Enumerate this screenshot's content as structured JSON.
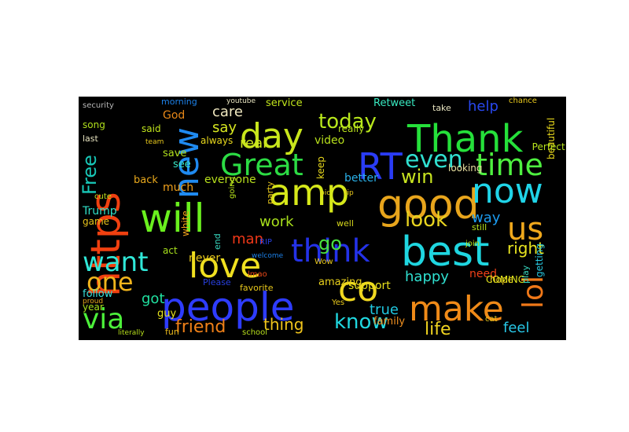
{
  "wordcloud": {
    "background": "#000000",
    "words": [
      {
        "text": "people",
        "color": "#2e3cff"
      },
      {
        "text": "best",
        "color": "#1fd6e0"
      },
      {
        "text": "good",
        "color": "#e8a51c"
      },
      {
        "text": "Thank",
        "color": "#25e03a"
      },
      {
        "text": "amp",
        "color": "#d6e81a"
      },
      {
        "text": "will",
        "color": "#6af01e"
      },
      {
        "text": "love",
        "color": "#f0e020"
      },
      {
        "text": "make",
        "color": "#f08a18"
      },
      {
        "text": "https",
        "color": "#f04010"
      },
      {
        "text": "new",
        "color": "#1f8af0"
      },
      {
        "text": "day",
        "color": "#c8e61c"
      },
      {
        "text": "now",
        "color": "#20d4e8"
      },
      {
        "text": "RT",
        "color": "#2a3cf5"
      },
      {
        "text": "think",
        "color": "#2432e8"
      },
      {
        "text": "co",
        "color": "#f0d820"
      },
      {
        "text": "Great",
        "color": "#2cdc44"
      },
      {
        "text": "time",
        "color": "#4ef040"
      },
      {
        "text": "us",
        "color": "#f0a81c"
      },
      {
        "text": "lol",
        "color": "#f07818"
      },
      {
        "text": "want",
        "color": "#30e8d8"
      },
      {
        "text": "via",
        "color": "#4cf03a"
      },
      {
        "text": "one",
        "color": "#f0b41c"
      },
      {
        "text": "even",
        "color": "#30e0d0"
      },
      {
        "text": "today",
        "color": "#b8e81c"
      },
      {
        "text": "win",
        "color": "#c8e420"
      },
      {
        "text": "Free",
        "color": "#18c8b8"
      },
      {
        "text": "look",
        "color": "#e8d420"
      },
      {
        "text": "know",
        "color": "#20d8e0"
      },
      {
        "text": "go",
        "color": "#4ae040"
      },
      {
        "text": "life",
        "color": "#f0d420"
      },
      {
        "text": "friend",
        "color": "#f08018"
      },
      {
        "text": "thing",
        "color": "#f0c41c"
      },
      {
        "text": "care",
        "color": "#f0e8c0"
      },
      {
        "text": "say",
        "color": "#d8e820"
      },
      {
        "text": "real",
        "color": "#d0e820"
      },
      {
        "text": "help",
        "color": "#2848f0"
      },
      {
        "text": "right",
        "color": "#e8e420"
      },
      {
        "text": "work",
        "color": "#a8e01c"
      },
      {
        "text": "man",
        "color": "#f03818"
      },
      {
        "text": "happy",
        "color": "#30e0d0"
      },
      {
        "text": "feel",
        "color": "#28c8e8"
      },
      {
        "text": "true",
        "color": "#20c8e0"
      },
      {
        "text": "got",
        "color": "#20e0a0"
      },
      {
        "text": "way",
        "color": "#1c9cf0"
      },
      {
        "text": "Trump",
        "color": "#30e0c8"
      },
      {
        "text": "God",
        "color": "#e88818"
      },
      {
        "text": "much",
        "color": "#f0a01c"
      },
      {
        "text": "everyone",
        "color": "#b8e01c"
      },
      {
        "text": "never",
        "color": "#e8c81c"
      },
      {
        "text": "Retweet",
        "color": "#38e8c0"
      },
      {
        "text": "service",
        "color": "#c0e41c"
      },
      {
        "text": "morning",
        "color": "#1c80e8"
      },
      {
        "text": "better",
        "color": "#2ab0e8"
      },
      {
        "text": "video",
        "color": "#b8e01c"
      },
      {
        "text": "save",
        "color": "#b0e01c"
      },
      {
        "text": "see",
        "color": "#38e8c8"
      },
      {
        "text": "back",
        "color": "#e8a81c"
      },
      {
        "text": "need",
        "color": "#f04018"
      },
      {
        "text": "hope",
        "color": "#e8c81c"
      },
      {
        "text": "COMING",
        "color": "#e0e41c"
      },
      {
        "text": "support",
        "color": "#e8e01c"
      },
      {
        "text": "family",
        "color": "#f09020"
      },
      {
        "text": "amazing",
        "color": "#e8d01c"
      },
      {
        "text": "guy",
        "color": "#e8e41c"
      },
      {
        "text": "follow",
        "color": "#38e0d8"
      },
      {
        "text": "year",
        "color": "#a8e01c"
      },
      {
        "text": "game",
        "color": "#e8c41c"
      },
      {
        "text": "still",
        "color": "#b8e41c"
      },
      {
        "text": "always",
        "color": "#e8d81c"
      },
      {
        "text": "said",
        "color": "#c0e41c"
      },
      {
        "text": "song",
        "color": "#b0e01c"
      },
      {
        "text": "really",
        "color": "#b8e01c"
      },
      {
        "text": "take",
        "color": "#e8e4c0"
      },
      {
        "text": "looking",
        "color": "#e8e0a0"
      },
      {
        "text": "beautiful",
        "color": "#e8d81c"
      },
      {
        "text": "Perfect",
        "color": "#b8e41c"
      },
      {
        "text": "getting",
        "color": "#28c8e0"
      },
      {
        "text": "play",
        "color": "#38d8c0"
      },
      {
        "text": "last",
        "color": "#e8e4c0"
      },
      {
        "text": "fun",
        "color": "#e8b81c"
      },
      {
        "text": "favorite",
        "color": "#e8c81c"
      },
      {
        "text": "Please",
        "color": "#2840e0"
      },
      {
        "text": "act",
        "color": "#a8e01c"
      },
      {
        "text": "keep",
        "color": "#e8d81c"
      },
      {
        "text": "party",
        "color": "#e8c81c"
      },
      {
        "text": "white",
        "color": "#f0a01c"
      },
      {
        "text": "end",
        "color": "#38d8c0"
      },
      {
        "text": "school",
        "color": "#b8e01c"
      },
      {
        "text": "literally",
        "color": "#b8e01c"
      },
      {
        "text": "well",
        "color": "#d8d81c"
      },
      {
        "text": "chance",
        "color": "#e8c81c"
      },
      {
        "text": "security",
        "color": "#b8b8b8"
      },
      {
        "text": "cute",
        "color": "#c0e01c"
      },
      {
        "text": "Wow",
        "color": "#e8c81c"
      },
      {
        "text": "RIP",
        "color": "#2840e0"
      },
      {
        "text": "lmao",
        "color": "#e84818"
      },
      {
        "text": "going",
        "color": "#b8e41c"
      },
      {
        "text": "proud",
        "color": "#e8a81c"
      },
      {
        "text": "Yes",
        "color": "#e8c81c"
      },
      {
        "text": "youtube",
        "color": "#e8e4c0"
      },
      {
        "text": "welcome",
        "color": "#1c80e8"
      },
      {
        "text": "tip",
        "color": "#e8c81c"
      },
      {
        "text": "pic",
        "color": "#e8d81c"
      },
      {
        "text": "join",
        "color": "#b8e41c"
      },
      {
        "text": "team",
        "color": "#e8c81c"
      },
      {
        "text": "cat",
        "color": "#e8c81c"
      }
    ]
  }
}
